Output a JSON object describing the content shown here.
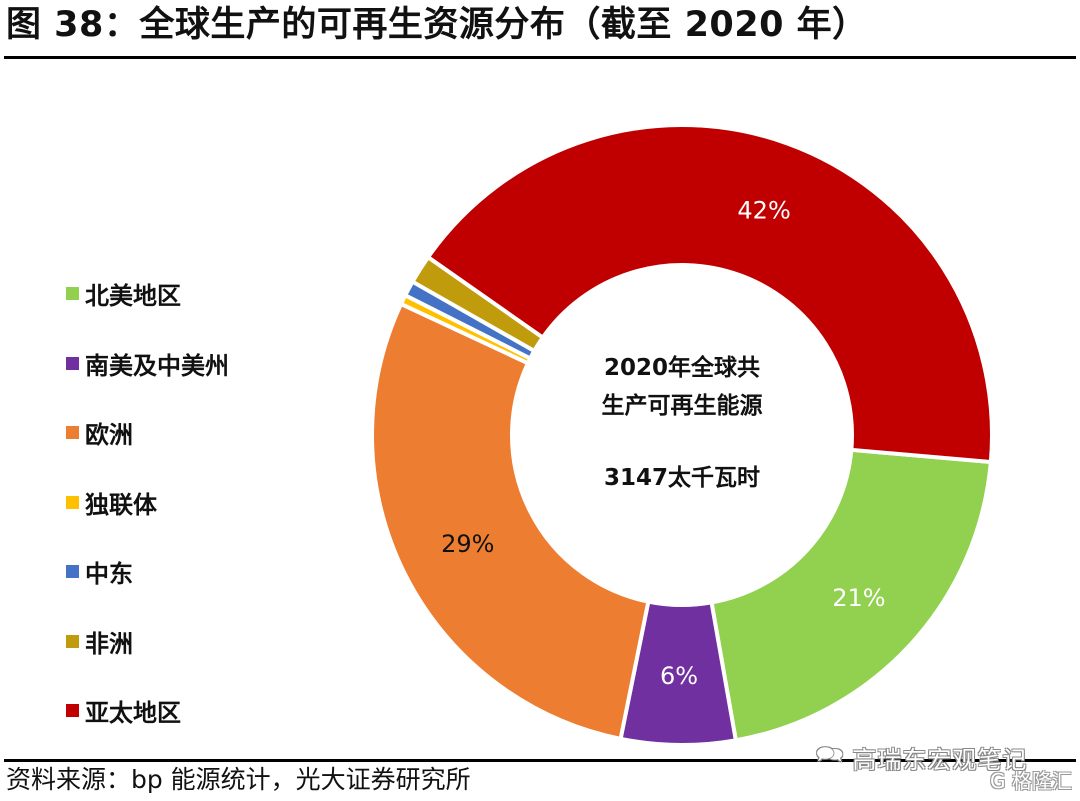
{
  "title": "图 38：全球生产的可再生资源分布（截至 2020 年）",
  "source": "资料来源：bp 能源统计，光大证券研究所",
  "watermark": {
    "text": "高瑞东宏观笔记",
    "icon": "wechat-icon",
    "brand": "格隆汇",
    "brand_icon": "G"
  },
  "chart_data": {
    "type": "pie",
    "subtype": "donut",
    "title": "图 38：全球生产的可再生资源分布（截至 2020 年）",
    "center_label": {
      "line1": "2020年全球共",
      "line2": "生产可再生能源",
      "line3": "3147太千瓦时"
    },
    "legend_position": "left",
    "categories": [
      "北美地区",
      "南美及中美州",
      "欧洲",
      "独联体",
      "中东",
      "非洲",
      "亚太地区"
    ],
    "values": [
      21,
      6,
      29,
      0.5,
      0.8,
      1.5,
      42
    ],
    "data_labels": [
      "21%",
      "6%",
      "29%",
      "",
      "",
      "",
      "42%"
    ],
    "colors": [
      "#92d050",
      "#7030a0",
      "#ed7d31",
      "#ffc000",
      "#4472c4",
      "#c09b0c",
      "#c00000"
    ],
    "label_colors": [
      "#ffffff",
      "#ffffff",
      "#111111",
      "#111111",
      "#111111",
      "#111111",
      "#ffffff"
    ]
  }
}
